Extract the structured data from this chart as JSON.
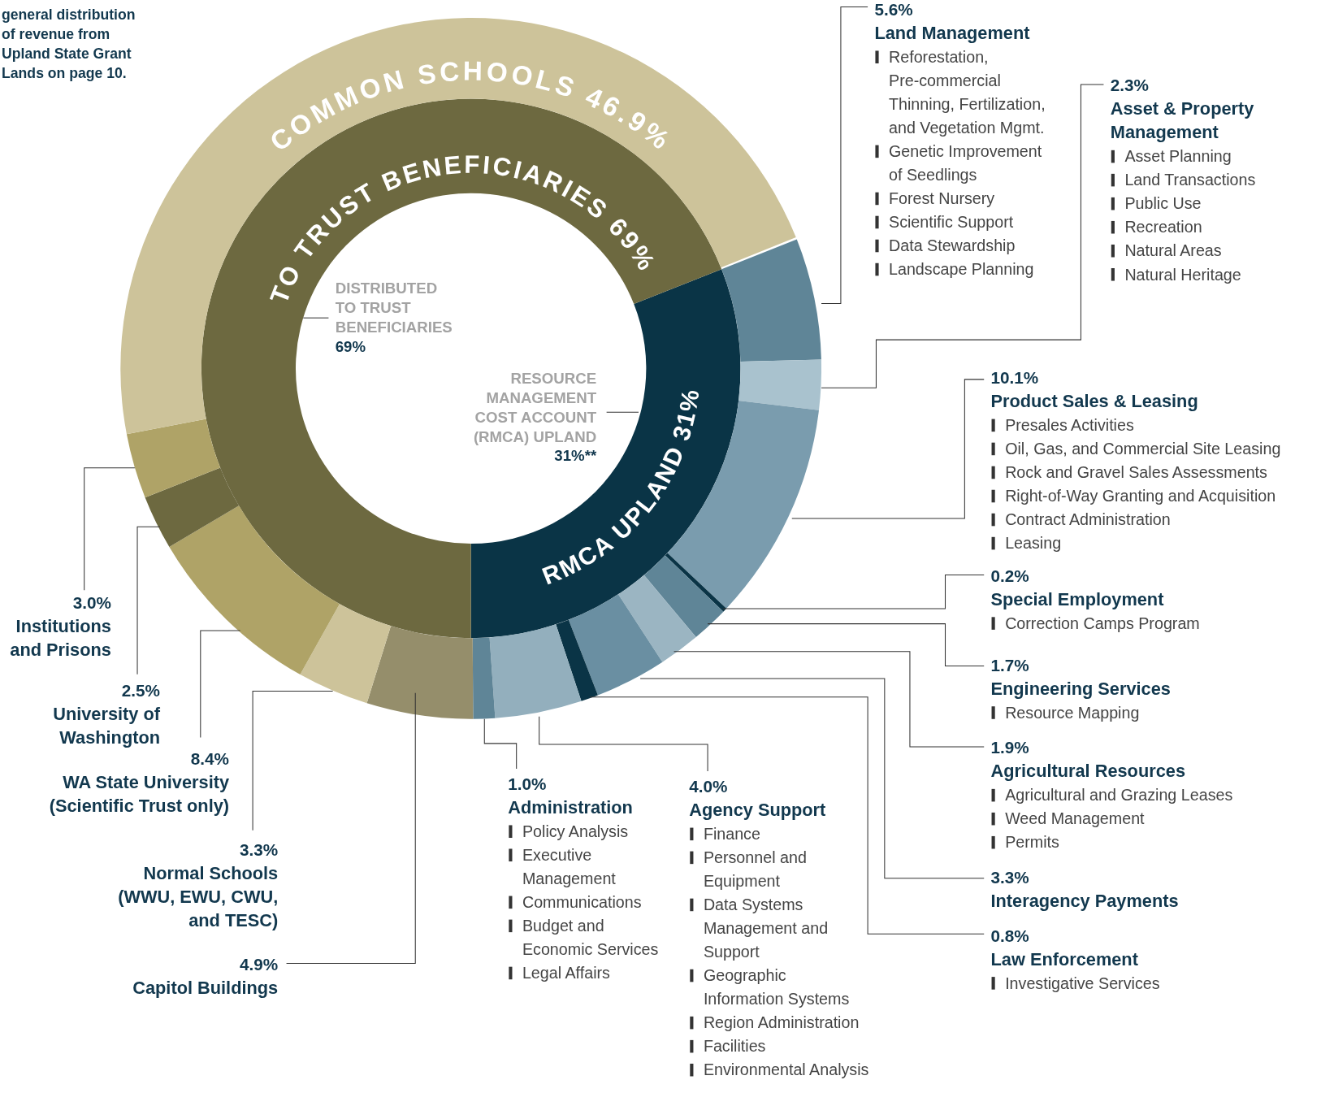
{
  "chart_data": [
    {
      "type": "donut",
      "categories": [
        "RMCA UPLAND",
        "TO TRUST BENEFICIARIES"
      ],
      "values": [
        31,
        69
      ],
      "colors": [
        "#0a3446",
        "#6d6940"
      ],
      "value_labels": [
        "31%",
        "69%"
      ],
      "annotations": [
        "DISTRIBUTED TO TRUST BENEFICIARIES 69%",
        "RESOURCE MANAGEMENT COST ACCOUNT (RMCA) UPLAND 31%**"
      ]
    },
    {
      "type": "donut",
      "categories": [
        "Land Management",
        "Asset & Property Management",
        "Product Sales & Leasing",
        "Special Employment",
        "Engineering Services",
        "Agricultural Resources",
        "Interagency Payments",
        "Law Enforcement",
        "Agency Support",
        "Administration",
        "Capitol Buildings",
        "Normal Schools (WWU, EWU, CWU, and TESC)",
        "WA State University (Scientific Trust only)",
        "University of Washington",
        "Institutions and Prisons",
        "COMMON SCHOOLS"
      ],
      "values": [
        5.6,
        2.3,
        10.1,
        0.2,
        1.7,
        1.9,
        3.3,
        0.8,
        4.0,
        1.0,
        4.9,
        3.3,
        8.4,
        2.5,
        3.0,
        46.9
      ],
      "colors": [
        "#5f8597",
        "#a9c2ce",
        "#7a9cae",
        "#0a3446",
        "#5f8597",
        "#9bb5c2",
        "#6a8fa2",
        "#0a3446",
        "#93afbd",
        "#5f8597",
        "#958e6b",
        "#cdc39a",
        "#afa367",
        "#6d6940",
        "#afa367",
        "#cdc39a"
      ],
      "value_labels": [
        "5.6%",
        "2.3%",
        "10.1%",
        "0.2%",
        "1.7%",
        "1.9%",
        "3.3%",
        "0.8%",
        "4.0%",
        "1.0%",
        "4.9%",
        "3.3%",
        "8.4%",
        "2.5%",
        "3.0%",
        "46.9%"
      ],
      "annotations": [
        "general distribution of revenue from Upland State Grant Lands on page 10.",
        {
          "text": "Reforestation, Pre-commercial Thinning, Fertilization, and Vegetation Mgmt.",
          "x": "Land Management"
        },
        {
          "text": "Genetic Improvement of Seedlings",
          "x": "Land Management"
        },
        {
          "text": "Forest Nursery",
          "x": "Land Management"
        },
        {
          "text": "Scientific Support",
          "x": "Land Management"
        },
        {
          "text": "Data Stewardship",
          "x": "Land Management"
        },
        {
          "text": "Landscape Planning",
          "x": "Land Management"
        },
        {
          "text": "Asset Planning",
          "x": "Asset & Property Management"
        },
        {
          "text": "Land Transactions",
          "x": "Asset & Property Management"
        },
        {
          "text": "Public Use",
          "x": "Asset & Property Management"
        },
        {
          "text": "Recreation",
          "x": "Asset & Property Management"
        },
        {
          "text": "Natural Areas",
          "x": "Asset & Property Management"
        },
        {
          "text": "Natural Heritage",
          "x": "Asset & Property Management"
        },
        {
          "text": "Presales Activities",
          "x": "Product Sales & Leasing"
        },
        {
          "text": "Oil, Gas, and Commercial Site Leasing",
          "x": "Product Sales & Leasing"
        },
        {
          "text": "Rock and Gravel Sales Assessments",
          "x": "Product Sales & Leasing"
        },
        {
          "text": "Right-of-Way Granting and Acquisition",
          "x": "Product Sales & Leasing"
        },
        {
          "text": "Contract Administration",
          "x": "Product Sales & Leasing"
        },
        {
          "text": "Leasing",
          "x": "Product Sales & Leasing"
        },
        {
          "text": "Correction Camps Program",
          "x": "Special Employment"
        },
        {
          "text": "Resource Mapping",
          "x": "Engineering Services"
        },
        {
          "text": "Agricultural and Grazing Leases",
          "x": "Agricultural Resources"
        },
        {
          "text": "Weed Management",
          "x": "Agricultural Resources"
        },
        {
          "text": "Permits",
          "x": "Agricultural Resources"
        },
        {
          "text": "Investigative Services",
          "x": "Law Enforcement"
        },
        {
          "text": "Finance",
          "x": "Agency Support"
        },
        {
          "text": "Personnel and Equipment",
          "x": "Agency Support"
        },
        {
          "text": "Data Systems Management and Support",
          "x": "Agency Support"
        },
        {
          "text": "Geographic Information Systems",
          "x": "Agency Support"
        },
        {
          "text": "Region Administration",
          "x": "Agency Support"
        },
        {
          "text": "Facilities",
          "x": "Agency Support"
        },
        {
          "text": "Environmental Analysis",
          "x": "Agency Support"
        },
        {
          "text": "Policy Analysis",
          "x": "Administration"
        },
        {
          "text": "Executive Management",
          "x": "Administration"
        },
        {
          "text": "Communications",
          "x": "Administration"
        },
        {
          "text": "Budget and Economic Services",
          "x": "Administration"
        },
        {
          "text": "Legal Affairs",
          "x": "Administration"
        }
      ]
    }
  ]
}
